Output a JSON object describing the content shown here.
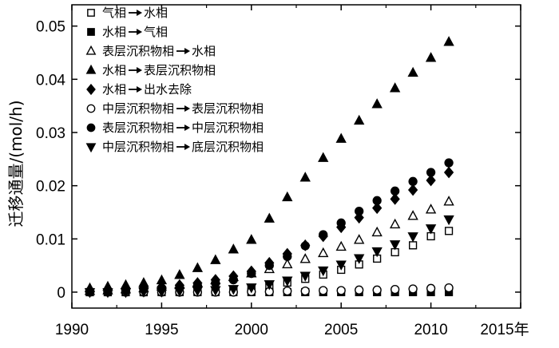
{
  "chart_data": {
    "type": "scatter",
    "title": "",
    "xlabel": "",
    "x_last_tick_suffix": "年",
    "ylabel": "迁移通量/(mol/h)",
    "xlim": [
      1990,
      2015
    ],
    "ylim": [
      -0.003,
      0.054
    ],
    "xticks": [
      1990,
      1995,
      2000,
      2005,
      2010,
      2015
    ],
    "yticks": [
      0,
      0.01,
      0.02,
      0.03,
      0.04,
      0.05
    ],
    "ytick_labels": [
      "0",
      "0.01",
      "0.02",
      "0.03",
      "0.04",
      "0.05"
    ],
    "legend_position": "top-left",
    "grid": false,
    "x": [
      1991,
      1992,
      1993,
      1994,
      1995,
      1996,
      1997,
      1998,
      1999,
      2000,
      2001,
      2002,
      2003,
      2004,
      2005,
      2006,
      2007,
      2008,
      2009,
      2010,
      2011
    ],
    "series": [
      {
        "name": "气相",
        "name2": "水相",
        "marker": "square-open",
        "values": [
          0,
          0,
          0,
          0,
          0.0001,
          0.0001,
          0.0002,
          0.0003,
          0.0005,
          0.0008,
          0.0012,
          0.0018,
          0.0025,
          0.0033,
          0.0042,
          0.0052,
          0.0063,
          0.0075,
          0.0088,
          0.0105,
          0.0115
        ]
      },
      {
        "name": "水相",
        "name2": "气相",
        "marker": "square-filled",
        "values": [
          0,
          0,
          0,
          0,
          0,
          0,
          0,
          0,
          0,
          0,
          0,
          0,
          0,
          0,
          0,
          0,
          0,
          0,
          0,
          0,
          0
        ]
      },
      {
        "name": "表层沉积物相",
        "name2": "水相",
        "marker": "triangle-up-open",
        "values": [
          0.0002,
          0.0003,
          0.0005,
          0.0007,
          0.001,
          0.0013,
          0.0017,
          0.0022,
          0.0028,
          0.0035,
          0.0043,
          0.0052,
          0.0062,
          0.0073,
          0.0085,
          0.0098,
          0.0112,
          0.0127,
          0.0143,
          0.0155,
          0.017
        ]
      },
      {
        "name": "水相",
        "name2": "表层沉积物相",
        "marker": "triangle-up-filled",
        "values": [
          0.0007,
          0.001,
          0.0013,
          0.0017,
          0.0022,
          0.0032,
          0.0045,
          0.006,
          0.008,
          0.0098,
          0.0138,
          0.0178,
          0.0215,
          0.0252,
          0.0288,
          0.0322,
          0.0353,
          0.0383,
          0.0412,
          0.044,
          0.047
        ]
      },
      {
        "name": "水相",
        "name2": "出水去除",
        "marker": "diamond-filled",
        "values": [
          0.0003,
          0.0004,
          0.0006,
          0.0008,
          0.001,
          0.0013,
          0.0017,
          0.0023,
          0.003,
          0.0039,
          0.0055,
          0.0072,
          0.0088,
          0.0105,
          0.0122,
          0.014,
          0.0158,
          0.0175,
          0.0192,
          0.021,
          0.0225
        ]
      },
      {
        "name": "中层沉积物相",
        "name2": "表层沉积物相",
        "marker": "circle-open",
        "values": [
          0,
          0,
          0,
          0,
          0,
          0,
          0,
          0,
          0,
          0.0001,
          0.0001,
          0.0002,
          0.0002,
          0.0003,
          0.0003,
          0.0004,
          0.0004,
          0.0005,
          0.0006,
          0.0007,
          0.0008
        ]
      },
      {
        "name": "表层沉积物相",
        "name2": "中层沉积物相",
        "marker": "circle-filled",
        "values": [
          0.0001,
          0.0002,
          0.0003,
          0.0005,
          0.0007,
          0.0009,
          0.0012,
          0.0017,
          0.0023,
          0.0035,
          0.005,
          0.0067,
          0.0087,
          0.0108,
          0.013,
          0.0152,
          0.0172,
          0.019,
          0.0208,
          0.0225,
          0.0243
        ]
      },
      {
        "name": "中层沉积物相",
        "name2": "底层沉积物相",
        "marker": "triangle-down-filled",
        "values": [
          0,
          0,
          0,
          0.0001,
          0.0001,
          0.0002,
          0.0003,
          0.0004,
          0.0006,
          0.0009,
          0.0015,
          0.0022,
          0.0031,
          0.0041,
          0.0052,
          0.0064,
          0.0077,
          0.009,
          0.0105,
          0.012,
          0.0137
        ]
      }
    ]
  }
}
